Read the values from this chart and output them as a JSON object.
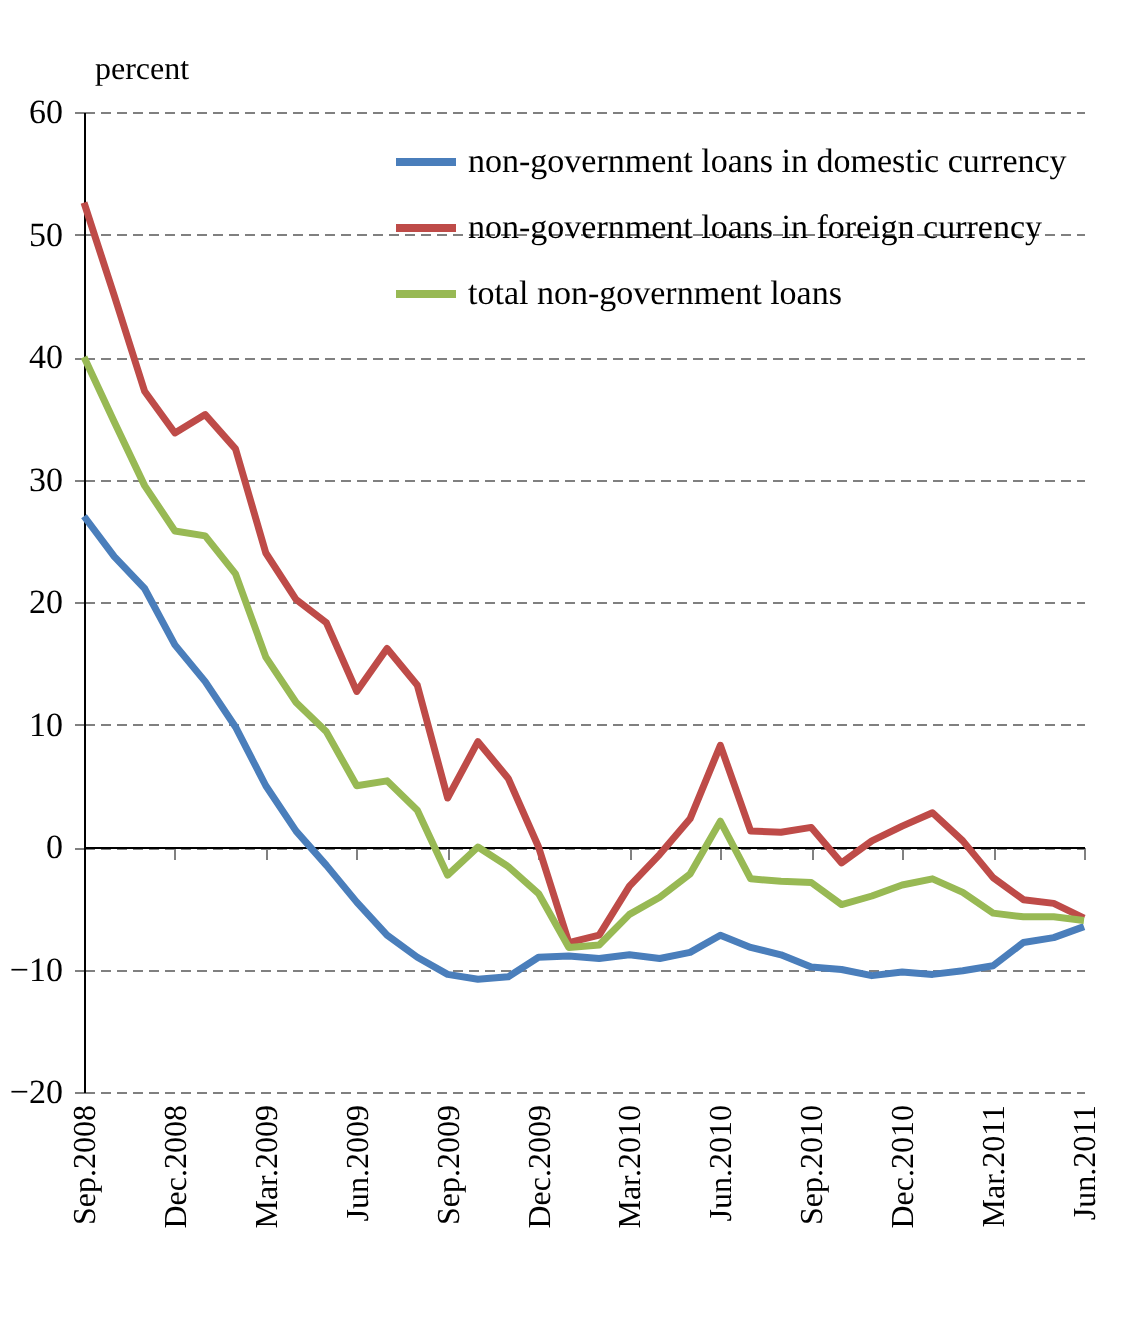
{
  "chart_data": {
    "type": "line",
    "ylabel": "percent",
    "categories": [
      "Sep.2008",
      null,
      null,
      "Dec.2008",
      null,
      null,
      "Mar.2009",
      null,
      null,
      "Jun.2009",
      null,
      null,
      "Sep.2009",
      null,
      null,
      "Dec.2009",
      null,
      null,
      "Mar.2010",
      null,
      null,
      "Jun.2010",
      null,
      null,
      "Sep.2010",
      null,
      null,
      "Dec.2010",
      null,
      null,
      "Mar.2011",
      null,
      null,
      "Jun.2011"
    ],
    "series": [
      {
        "name": "non-government loans in domestic currency",
        "color": "#4a7ebb",
        "values": [
          27.0,
          23.7,
          21.1,
          16.5,
          13.5,
          9.8,
          5.0,
          1.3,
          -1.5,
          -4.5,
          -7.2,
          -9.0,
          -10.4,
          -10.8,
          -10.6,
          -9.0,
          -8.9,
          -9.1,
          -8.8,
          -9.1,
          -8.6,
          -7.2,
          -8.2,
          -8.8,
          -9.8,
          -10.0,
          -10.5,
          -10.2,
          -10.4,
          -10.1,
          -9.7,
          -7.8,
          -7.4,
          -6.5
        ]
      },
      {
        "name": "non-government loans in foreign currency",
        "color": "#be4b48",
        "values": [
          52.6,
          45.0,
          37.2,
          33.8,
          35.3,
          32.5,
          24.0,
          20.2,
          18.3,
          12.7,
          16.2,
          13.2,
          4.0,
          8.6,
          5.6,
          0.0,
          -7.8,
          -7.2,
          -3.2,
          -0.6,
          2.3,
          8.3,
          1.3,
          1.2,
          1.6,
          -1.3,
          0.5,
          1.7,
          2.8,
          0.5,
          -2.5,
          -4.3,
          -4.6,
          -5.8
        ]
      },
      {
        "name": "total non-government loans",
        "color": "#98b954",
        "values": [
          40.0,
          34.7,
          29.5,
          25.8,
          25.4,
          22.3,
          15.5,
          11.8,
          9.4,
          5.0,
          5.4,
          3.0,
          -2.3,
          0.0,
          -1.6,
          -3.8,
          -8.2,
          -8.0,
          -5.5,
          -4.1,
          -2.2,
          2.1,
          -2.6,
          -2.8,
          -2.9,
          -4.7,
          -4.0,
          -3.1,
          -2.6,
          -3.7,
          -5.4,
          -5.7,
          -5.7,
          -6.0
        ]
      }
    ],
    "ylim": [
      -20,
      60
    ],
    "yticks": [
      -20,
      -10,
      0,
      10,
      20,
      30,
      40,
      50,
      60
    ],
    "grid": "y",
    "legend": "top right",
    "marker": "none",
    "line_style": "solid"
  }
}
